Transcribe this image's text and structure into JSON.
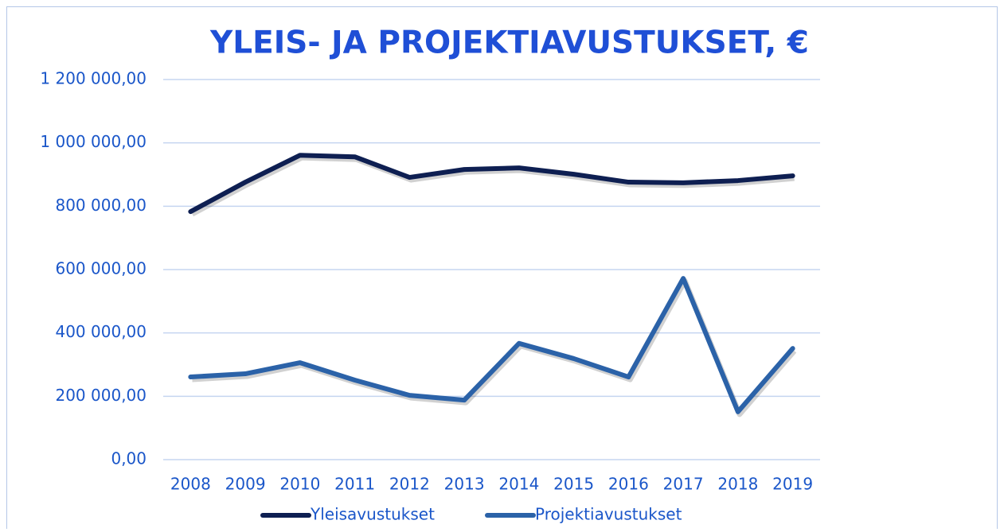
{
  "chart_data": {
    "type": "line",
    "title": "YLEIS- JA PROJEKTIAVUSTUKSET, €",
    "categories": [
      "2008",
      "2009",
      "2010",
      "2011",
      "2012",
      "2013",
      "2014",
      "2015",
      "2016",
      "2017",
      "2018",
      "2019"
    ],
    "series": [
      {
        "name": "Yleisavustukset",
        "color": "#0e1f52",
        "values": [
          783000,
          876000,
          961000,
          956000,
          891000,
          916000,
          921000,
          901000,
          876000,
          874000,
          881000,
          896000
        ]
      },
      {
        "name": "Projektiavustukset",
        "color": "#2b62a8",
        "values": [
          261000,
          271000,
          306000,
          251000,
          203000,
          188000,
          367000,
          319000,
          261000,
          572000,
          151000,
          351000
        ]
      }
    ],
    "ylim": [
      0,
      1200000
    ],
    "yticks": [
      {
        "value": 0,
        "label": "0,00"
      },
      {
        "value": 200000,
        "label": "200 000,00"
      },
      {
        "value": 400000,
        "label": "400 000,00"
      },
      {
        "value": 600000,
        "label": "600 000,00"
      },
      {
        "value": 800000,
        "label": "800 000,00"
      },
      {
        "value": 1000000,
        "label": "1 000 000,00"
      },
      {
        "value": 1200000,
        "label": "1 200 000,00"
      }
    ],
    "grid": true,
    "legend": "bottom"
  }
}
